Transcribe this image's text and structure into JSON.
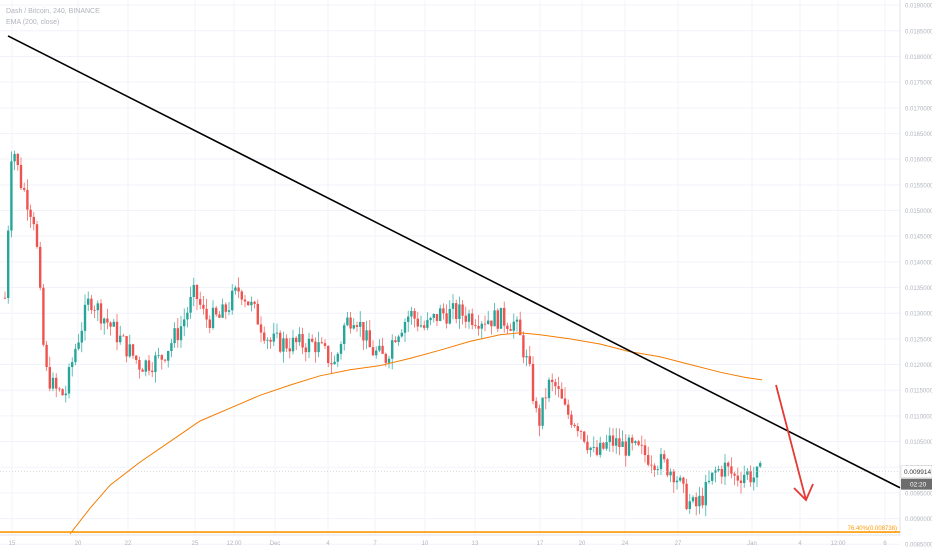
{
  "legend": {
    "line1": "Dash / Bitcoin, 240, BINANCE",
    "line2": "EMA (200, close)"
  },
  "colors": {
    "up": "#26a69a",
    "down": "#ef5350",
    "ema": "#f57c00",
    "trendline": "#000000",
    "support": "#ff9800",
    "arrow": "#e53935",
    "grid": "#f0f3fa",
    "axis_text": "#b2b5be"
  },
  "chart_data": {
    "type": "candlestick",
    "ylim": [
      0.00868,
      0.0191
    ],
    "y_ticks": [
      "0.0190000",
      "0.0185000",
      "0.0180000",
      "0.0175000",
      "0.0170000",
      "0.0165000",
      "0.0160000",
      "0.0155000",
      "0.0150000",
      "0.0145000",
      "0.0140000",
      "0.0135000",
      "0.0130000",
      "0.0125000",
      "0.0120000",
      "0.0115000",
      "0.0110000",
      "0.0105000",
      "0.0100000",
      "0.0095000",
      "0.0090000",
      "0.0085000"
    ],
    "x_ticks": [
      "15",
      "20",
      "22",
      "25",
      "12:00",
      "Dec",
      "4",
      "7",
      "10",
      "13",
      "17",
      "20",
      "24",
      "27",
      "Jan",
      "4",
      "12:00",
      "6"
    ],
    "last_price_label": "0.009914",
    "countdown_label": "02:20",
    "support_label": "76.40%(0.008738)",
    "trendline": {
      "from": [
        0,
        0.0184
      ],
      "to": [
        1,
        0.0096
      ]
    },
    "support_level": 0.008738
  }
}
